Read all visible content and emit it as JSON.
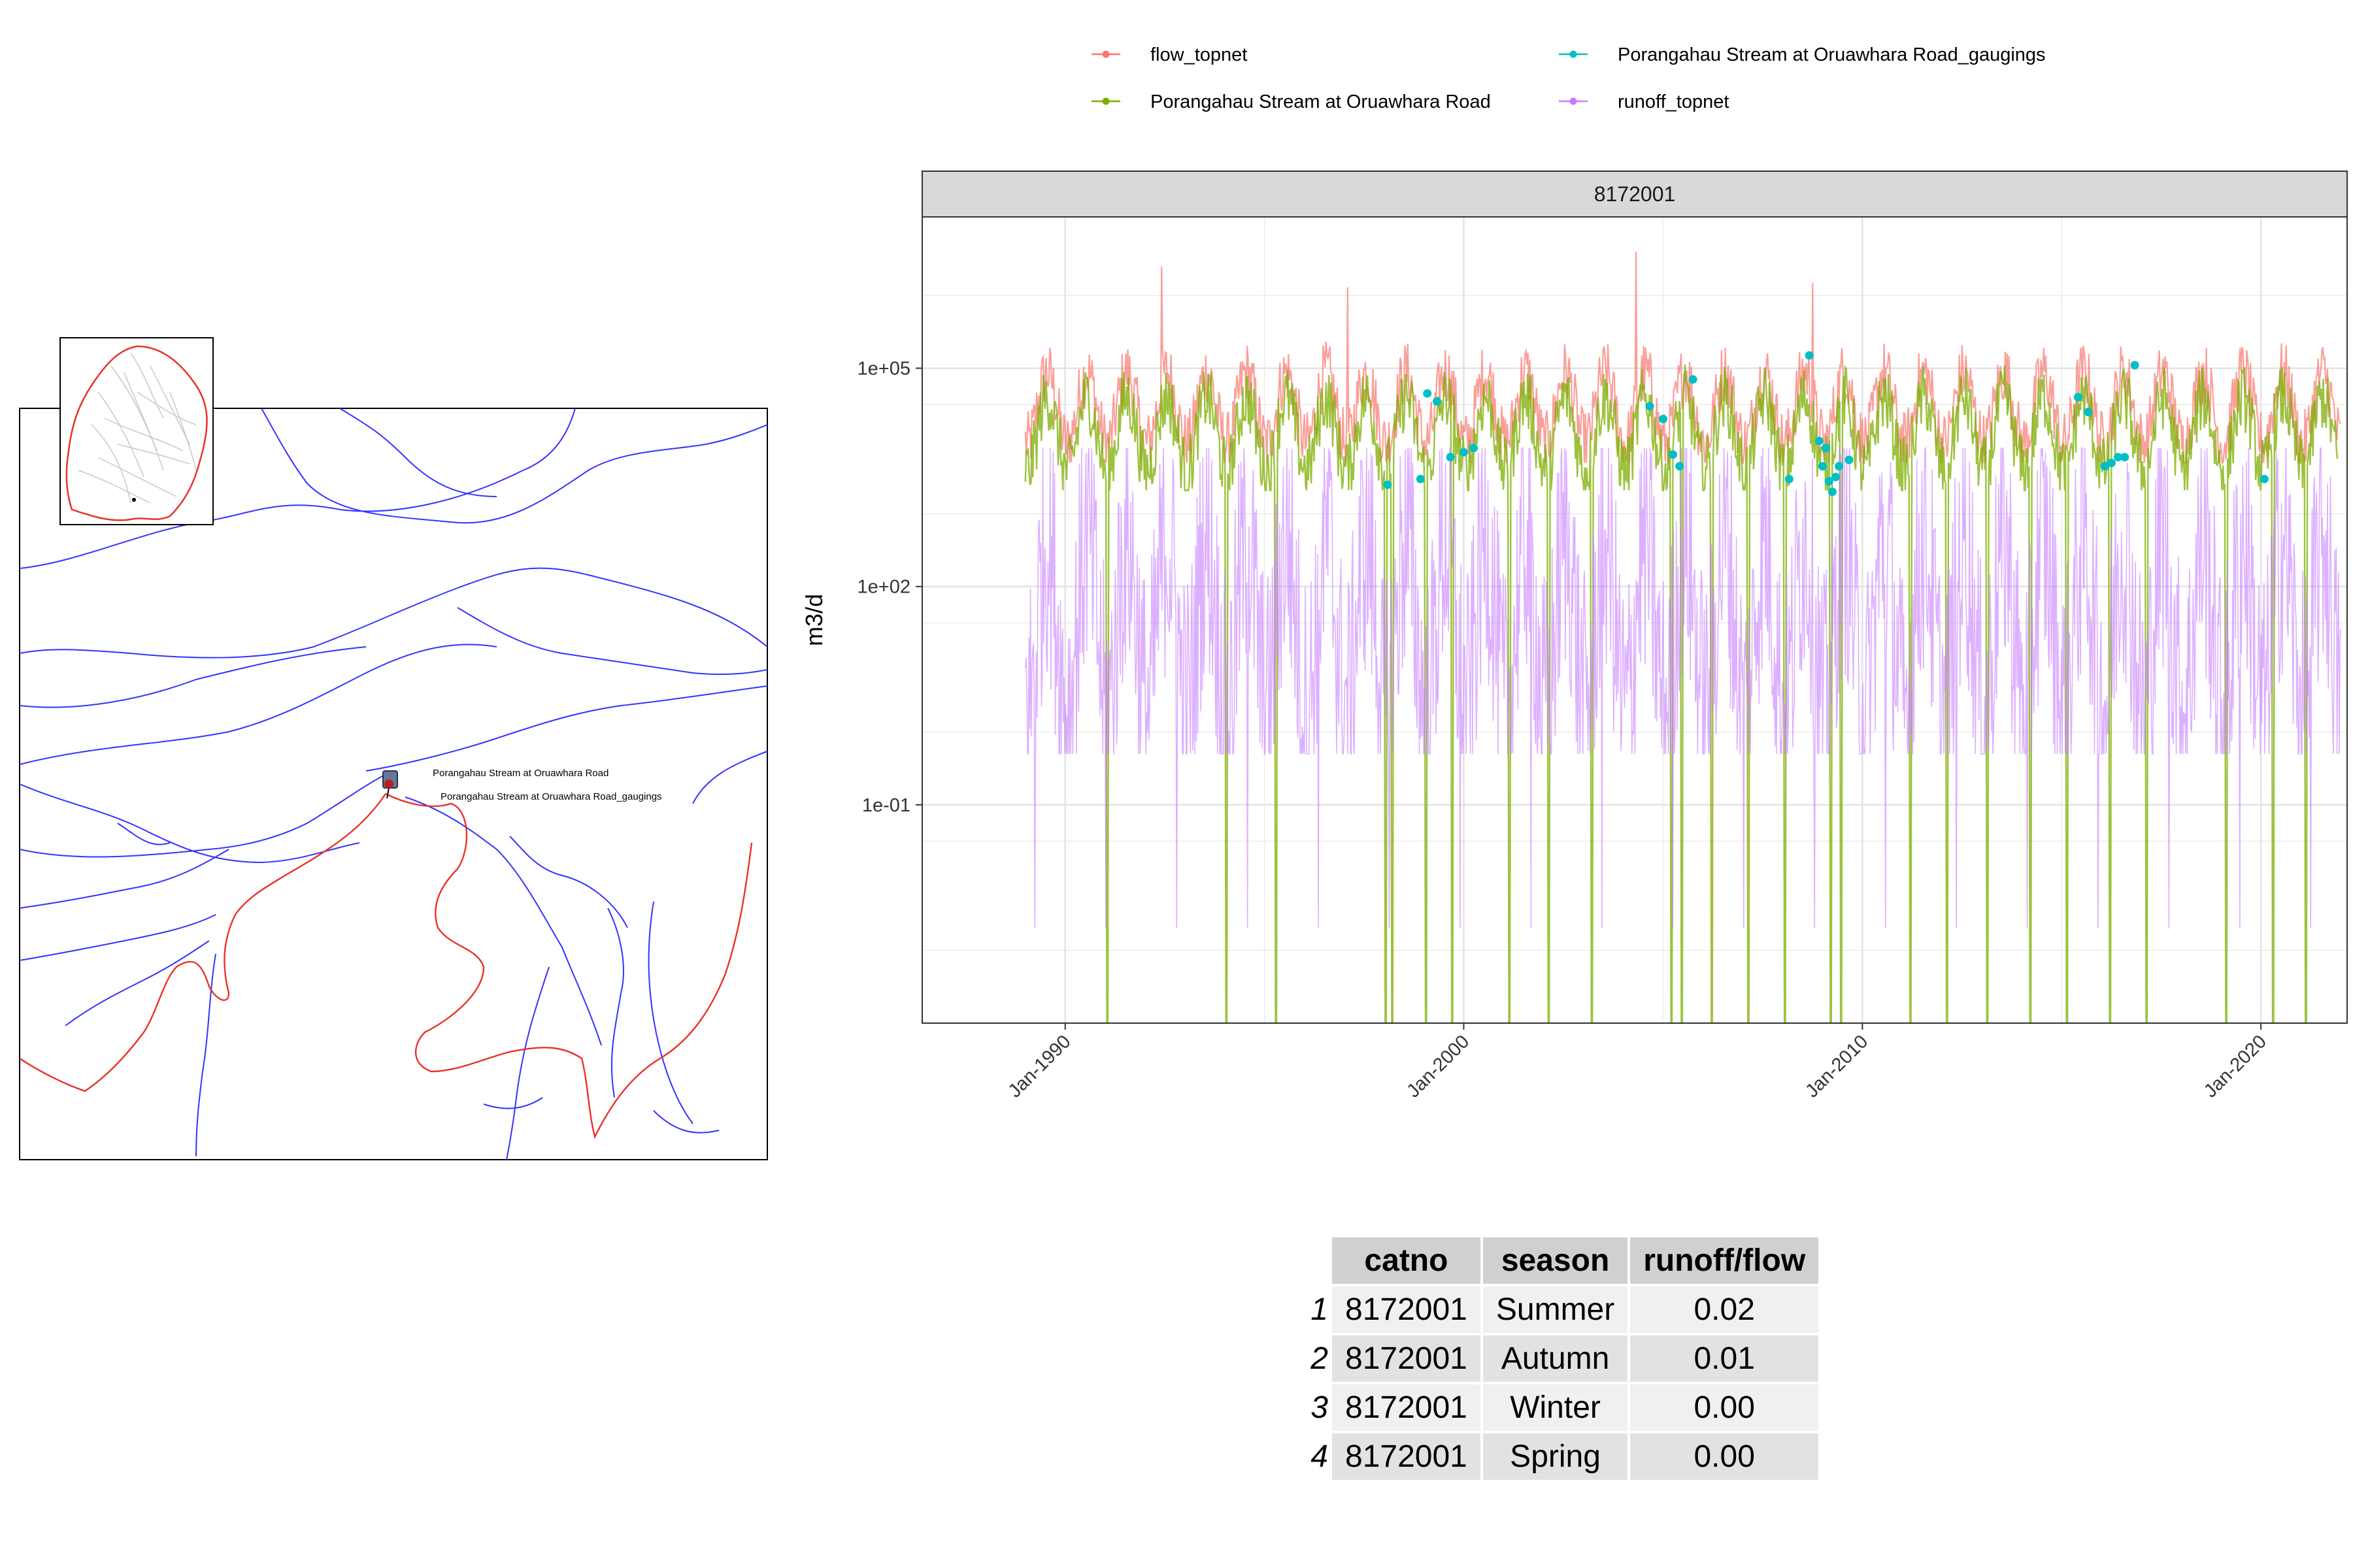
{
  "legend": {
    "items": [
      {
        "label": "flow_topnet",
        "color": "#F8766D"
      },
      {
        "label": "Porangahau Stream at Oruawhara Road_gaugings",
        "color": "#00BFC4"
      },
      {
        "label": "Porangahau Stream at Oruawhara Road",
        "color": "#7CAE00"
      },
      {
        "label": "runoff_topnet",
        "color": "#C77CFF"
      }
    ]
  },
  "map": {
    "site_label": "Porangahau Stream at Oruawhara Road",
    "gauging_label": "Porangahau Stream at Oruawhara Road_gaugings",
    "river_color": "#3333ff",
    "boundary_color": "#e8322b"
  },
  "chart_data": {
    "type": "line",
    "facet_label": "8172001",
    "ylabel": "m3/d",
    "xlabel": "",
    "y_scale": "log10",
    "ylim": [
      0.0001,
      12000000
    ],
    "xlim": [
      "1986-06-01",
      "2022-03-01"
    ],
    "x_ticks": [
      {
        "label": "Jan-1990",
        "date": "1990-01-01"
      },
      {
        "label": "Jan-2000",
        "date": "2000-01-01"
      },
      {
        "label": "Jan-2010",
        "date": "2010-01-01"
      },
      {
        "label": "Jan-2020",
        "date": "2020-01-01"
      }
    ],
    "y_ticks": [
      {
        "label": "1e+05",
        "value": 100000
      },
      {
        "label": "1e+02",
        "value": 100
      },
      {
        "label": "1e-01",
        "value": 0.1
      }
    ],
    "grid": true,
    "legend_position": "top",
    "series": [
      {
        "name": "flow_topnet",
        "color": "#F8766D",
        "range": [
          "1989-01-01",
          "2022-01-01"
        ],
        "typical": [
          5000,
          300000
        ],
        "peaks": [
          {
            "date": "1992-06-01",
            "value": 2500000
          },
          {
            "date": "2004-05-01",
            "value": 4000000
          },
          {
            "date": "2008-10-01",
            "value": 1500000
          },
          {
            "date": "1997-02-01",
            "value": 1300000
          }
        ]
      },
      {
        "name": "Porangahau Stream at Oruawhara Road",
        "color": "#7CAE00",
        "range": [
          "1989-01-01",
          "2021-12-01"
        ],
        "typical": [
          3000,
          200000
        ],
        "drops_to_axis_floor": true
      },
      {
        "name": "runoff_topnet",
        "color": "#C77CFF",
        "range": [
          "1989-01-01",
          "2022-01-01"
        ],
        "typical": [
          0.5,
          8000
        ],
        "minimum": 0.002
      }
    ],
    "gaugings": {
      "name": "Porangahau Stream at Oruawhara Road_gaugings",
      "color": "#00BFC4",
      "points": [
        {
          "date": "1998-02-01",
          "value": 2500
        },
        {
          "date": "1998-12-01",
          "value": 3000
        },
        {
          "date": "1999-02-01",
          "value": 45000
        },
        {
          "date": "1999-05-01",
          "value": 35000
        },
        {
          "date": "1999-09-01",
          "value": 6000
        },
        {
          "date": "2000-01-01",
          "value": 7000
        },
        {
          "date": "2000-04-01",
          "value": 8000
        },
        {
          "date": "2004-09-01",
          "value": 30000
        },
        {
          "date": "2005-01-01",
          "value": 20000
        },
        {
          "date": "2005-04-01",
          "value": 6500
        },
        {
          "date": "2005-06-01",
          "value": 4500
        },
        {
          "date": "2005-10-01",
          "value": 70000
        },
        {
          "date": "2008-03-01",
          "value": 3000
        },
        {
          "date": "2008-09-01",
          "value": 150000
        },
        {
          "date": "2008-12-01",
          "value": 10000
        },
        {
          "date": "2009-01-01",
          "value": 4500
        },
        {
          "date": "2009-02-01",
          "value": 8000
        },
        {
          "date": "2009-03-01",
          "value": 2800
        },
        {
          "date": "2009-04-01",
          "value": 2000
        },
        {
          "date": "2009-05-01",
          "value": 3200
        },
        {
          "date": "2009-06-01",
          "value": 4500
        },
        {
          "date": "2009-09-01",
          "value": 5500
        },
        {
          "date": "2015-06-01",
          "value": 40000
        },
        {
          "date": "2015-09-01",
          "value": 25000
        },
        {
          "date": "2016-02-01",
          "value": 4500
        },
        {
          "date": "2016-04-01",
          "value": 5000
        },
        {
          "date": "2016-06-01",
          "value": 6000
        },
        {
          "date": "2016-08-01",
          "value": 6000
        },
        {
          "date": "2016-11-01",
          "value": 110000
        },
        {
          "date": "2020-02-01",
          "value": 3000
        }
      ]
    }
  },
  "table": {
    "columns": [
      "catno",
      "season",
      "runoff/flow"
    ],
    "rows": [
      {
        "rowname": "1",
        "catno": "8172001",
        "season": "Summer",
        "ratio": "0.02"
      },
      {
        "rowname": "2",
        "catno": "8172001",
        "season": "Autumn",
        "ratio": "0.01"
      },
      {
        "rowname": "3",
        "catno": "8172001",
        "season": "Winter",
        "ratio": "0.00"
      },
      {
        "rowname": "4",
        "catno": "8172001",
        "season": "Spring",
        "ratio": "0.00"
      }
    ]
  }
}
